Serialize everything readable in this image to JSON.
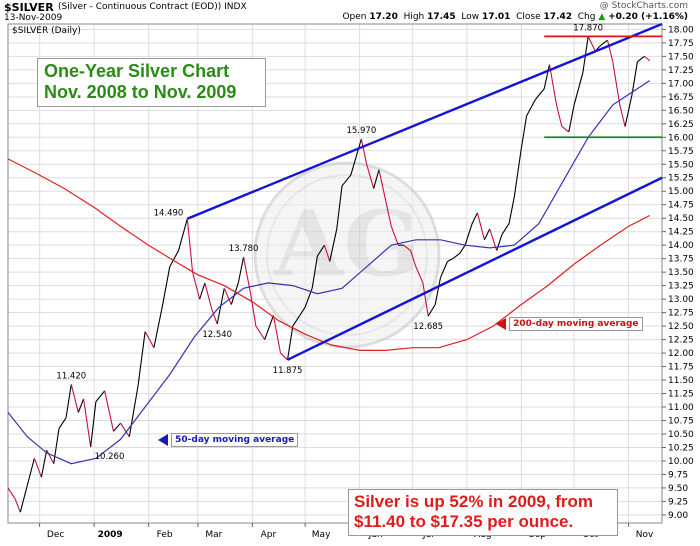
{
  "header": {
    "symbol": "$SILVER",
    "contract": "(Silver - Continuous Contract (EOD)) INDX",
    "date": "13-Nov-2009",
    "brand": "@ StockCharts.com",
    "quote": {
      "open_label": "Open",
      "open": "17.20",
      "high_label": "High",
      "high": "17.45",
      "low_label": "Low",
      "low": "17.01",
      "close_label": "Close",
      "close": "17.42",
      "chg_label": "Chg",
      "chg": "+0.20 (+1.16%)",
      "chg_arrow": "▲"
    },
    "chart_label": "$SILVER (Daily)"
  },
  "annotations": {
    "title_line1": "One-Year Silver Chart",
    "title_line2": "Nov. 2008 to Nov. 2009",
    "summary_line1": "Silver is up 52% in 2009, from",
    "summary_line2": "$11.40 to $17.35 per ounce.",
    "ma50_label": "50-day moving average",
    "ma200_label": "200-day moving average"
  },
  "colors": {
    "price_up": "#000000",
    "price_down": "#c8103c",
    "ma50": "#3434b4",
    "ma200": "#e02020",
    "channel": "#1414d8",
    "resistance": "#e81010",
    "support": "#109010",
    "title_text": "#2a8c16",
    "summary_text": "#e11b1b",
    "grid": "#dddddd"
  },
  "chart_data": {
    "type": "line",
    "ylim": [
      8.85,
      18.1
    ],
    "y_ticks": [
      "9.00",
      "9.25",
      "9.50",
      "9.75",
      "10.00",
      "10.25",
      "10.50",
      "10.75",
      "11.00",
      "11.25",
      "11.50",
      "11.75",
      "12.00",
      "12.25",
      "12.50",
      "12.75",
      "13.00",
      "13.25",
      "13.50",
      "13.75",
      "14.00",
      "14.25",
      "14.50",
      "14.75",
      "15.00",
      "15.25",
      "15.50",
      "15.75",
      "16.00",
      "16.25",
      "16.50",
      "16.75",
      "17.00",
      "17.25",
      "17.50",
      "17.75",
      "18.00"
    ],
    "x_ticks": [
      {
        "label": "Dec",
        "x": "2008-12-01"
      },
      {
        "label": "2009",
        "x": "2009-01-01",
        "bold": true
      },
      {
        "label": "Feb",
        "x": "2009-02-01"
      },
      {
        "label": "Mar",
        "x": "2009-03-01"
      },
      {
        "label": "Apr",
        "x": "2009-04-01"
      },
      {
        "label": "May",
        "x": "2009-05-01"
      },
      {
        "label": "Jun",
        "x": "2009-06-01"
      },
      {
        "label": "Jul",
        "x": "2009-07-01"
      },
      {
        "label": "Aug",
        "x": "2009-08-01"
      },
      {
        "label": "Sep",
        "x": "2009-09-01"
      },
      {
        "label": "Oct",
        "x": "2009-10-01"
      },
      {
        "label": "Nov",
        "x": "2009-11-01"
      }
    ],
    "x_range": [
      "2008-11-13",
      "2009-11-20"
    ],
    "series": [
      {
        "key": "price",
        "values": [
          [
            "2008-11-13",
            9.5
          ],
          [
            "2008-11-17",
            9.3
          ],
          [
            "2008-11-20",
            9.05
          ],
          [
            "2008-11-24",
            9.55
          ],
          [
            "2008-11-28",
            10.05
          ],
          [
            "2008-12-02",
            9.7
          ],
          [
            "2008-12-05",
            10.2
          ],
          [
            "2008-12-09",
            9.95
          ],
          [
            "2008-12-12",
            10.6
          ],
          [
            "2008-12-16",
            10.8
          ],
          [
            "2008-12-19",
            11.42
          ],
          [
            "2008-12-23",
            10.9
          ],
          [
            "2008-12-26",
            11.15
          ],
          [
            "2008-12-30",
            10.26
          ],
          [
            "2009-01-02",
            11.1
          ],
          [
            "2009-01-07",
            11.3
          ],
          [
            "2009-01-12",
            10.55
          ],
          [
            "2009-01-16",
            10.7
          ],
          [
            "2009-01-21",
            10.45
          ],
          [
            "2009-01-26",
            11.4
          ],
          [
            "2009-01-30",
            12.4
          ],
          [
            "2009-02-04",
            12.1
          ],
          [
            "2009-02-09",
            12.9
          ],
          [
            "2009-02-13",
            13.6
          ],
          [
            "2009-02-18",
            13.9
          ],
          [
            "2009-02-23",
            14.49
          ],
          [
            "2009-02-26",
            13.5
          ],
          [
            "2009-03-02",
            13.0
          ],
          [
            "2009-03-05",
            13.3
          ],
          [
            "2009-03-09",
            12.8
          ],
          [
            "2009-03-12",
            12.54
          ],
          [
            "2009-03-16",
            13.2
          ],
          [
            "2009-03-20",
            12.9
          ],
          [
            "2009-03-24",
            13.3
          ],
          [
            "2009-03-27",
            13.78
          ],
          [
            "2009-03-31",
            13.1
          ],
          [
            "2009-04-03",
            12.5
          ],
          [
            "2009-04-08",
            12.25
          ],
          [
            "2009-04-13",
            12.7
          ],
          [
            "2009-04-17",
            12.0
          ],
          [
            "2009-04-21",
            11.875
          ],
          [
            "2009-04-24",
            12.5
          ],
          [
            "2009-04-28",
            12.7
          ],
          [
            "2009-05-01",
            12.85
          ],
          [
            "2009-05-05",
            13.2
          ],
          [
            "2009-05-08",
            13.8
          ],
          [
            "2009-05-12",
            14.0
          ],
          [
            "2009-05-15",
            13.7
          ],
          [
            "2009-05-19",
            14.3
          ],
          [
            "2009-05-22",
            15.1
          ],
          [
            "2009-05-27",
            15.3
          ],
          [
            "2009-06-02",
            15.97
          ],
          [
            "2009-06-05",
            15.5
          ],
          [
            "2009-06-09",
            15.05
          ],
          [
            "2009-06-12",
            15.4
          ],
          [
            "2009-06-16",
            14.8
          ],
          [
            "2009-06-19",
            14.35
          ],
          [
            "2009-06-23",
            14.0
          ],
          [
            "2009-06-26",
            14.0
          ],
          [
            "2009-06-30",
            13.9
          ],
          [
            "2009-07-03",
            13.6
          ],
          [
            "2009-07-07",
            13.3
          ],
          [
            "2009-07-10",
            12.685
          ],
          [
            "2009-07-14",
            12.9
          ],
          [
            "2009-07-17",
            13.4
          ],
          [
            "2009-07-21",
            13.7
          ],
          [
            "2009-07-24",
            13.75
          ],
          [
            "2009-07-28",
            13.85
          ],
          [
            "2009-07-31",
            14.0
          ],
          [
            "2009-08-04",
            14.4
          ],
          [
            "2009-08-07",
            14.6
          ],
          [
            "2009-08-11",
            14.1
          ],
          [
            "2009-08-14",
            14.3
          ],
          [
            "2009-08-18",
            13.9
          ],
          [
            "2009-08-21",
            14.2
          ],
          [
            "2009-08-25",
            14.4
          ],
          [
            "2009-08-28",
            14.9
          ],
          [
            "2009-09-01",
            15.8
          ],
          [
            "2009-09-04",
            16.4
          ],
          [
            "2009-09-09",
            16.7
          ],
          [
            "2009-09-14",
            16.9
          ],
          [
            "2009-09-17",
            17.35
          ],
          [
            "2009-09-21",
            16.6
          ],
          [
            "2009-09-24",
            16.2
          ],
          [
            "2009-09-28",
            16.1
          ],
          [
            "2009-10-01",
            16.6
          ],
          [
            "2009-10-06",
            17.2
          ],
          [
            "2009-10-09",
            17.87
          ],
          [
            "2009-10-13",
            17.6
          ],
          [
            "2009-10-16",
            17.7
          ],
          [
            "2009-10-20",
            17.8
          ],
          [
            "2009-10-23",
            17.4
          ],
          [
            "2009-10-27",
            16.6
          ],
          [
            "2009-10-30",
            16.2
          ],
          [
            "2009-11-03",
            16.8
          ],
          [
            "2009-11-06",
            17.4
          ],
          [
            "2009-11-10",
            17.5
          ],
          [
            "2009-11-13",
            17.42
          ]
        ]
      },
      {
        "key": "ma50",
        "name": "50-day moving average",
        "values": [
          [
            "2008-11-13",
            10.9
          ],
          [
            "2008-11-24",
            10.45
          ],
          [
            "2008-12-05",
            10.15
          ],
          [
            "2008-12-19",
            9.95
          ],
          [
            "2009-01-02",
            10.05
          ],
          [
            "2009-01-16",
            10.4
          ],
          [
            "2009-01-30",
            11.0
          ],
          [
            "2009-02-13",
            11.6
          ],
          [
            "2009-02-27",
            12.3
          ],
          [
            "2009-03-13",
            12.85
          ],
          [
            "2009-03-27",
            13.2
          ],
          [
            "2009-04-10",
            13.3
          ],
          [
            "2009-04-24",
            13.25
          ],
          [
            "2009-05-08",
            13.1
          ],
          [
            "2009-05-22",
            13.2
          ],
          [
            "2009-06-05",
            13.6
          ],
          [
            "2009-06-19",
            14.0
          ],
          [
            "2009-07-03",
            14.1
          ],
          [
            "2009-07-17",
            14.1
          ],
          [
            "2009-07-31",
            14.0
          ],
          [
            "2009-08-14",
            13.95
          ],
          [
            "2009-08-28",
            14.0
          ],
          [
            "2009-09-11",
            14.4
          ],
          [
            "2009-09-25",
            15.2
          ],
          [
            "2009-10-09",
            16.0
          ],
          [
            "2009-10-23",
            16.6
          ],
          [
            "2009-11-06",
            16.9
          ],
          [
            "2009-11-13",
            17.05
          ]
        ]
      },
      {
        "key": "ma200",
        "name": "200-day moving average",
        "values": [
          [
            "2008-11-13",
            15.6
          ],
          [
            "2008-11-28",
            15.35
          ],
          [
            "2008-12-15",
            15.05
          ],
          [
            "2009-01-01",
            14.7
          ],
          [
            "2009-01-16",
            14.35
          ],
          [
            "2009-02-01",
            14.0
          ],
          [
            "2009-02-16",
            13.7
          ],
          [
            "2009-03-01",
            13.45
          ],
          [
            "2009-03-16",
            13.25
          ],
          [
            "2009-04-01",
            12.95
          ],
          [
            "2009-04-16",
            12.6
          ],
          [
            "2009-05-01",
            12.35
          ],
          [
            "2009-05-16",
            12.15
          ],
          [
            "2009-06-01",
            12.05
          ],
          [
            "2009-06-16",
            12.05
          ],
          [
            "2009-07-01",
            12.1
          ],
          [
            "2009-07-16",
            12.1
          ],
          [
            "2009-08-01",
            12.25
          ],
          [
            "2009-08-16",
            12.5
          ],
          [
            "2009-09-01",
            12.9
          ],
          [
            "2009-09-16",
            13.25
          ],
          [
            "2009-10-01",
            13.65
          ],
          [
            "2009-10-16",
            14.0
          ],
          [
            "2009-11-01",
            14.35
          ],
          [
            "2009-11-13",
            14.55
          ]
        ]
      }
    ],
    "trend_lines": [
      {
        "key": "upper-channel",
        "from": [
          "2009-02-23",
          14.49
        ],
        "to": [
          "2009-11-20",
          18.1
        ]
      },
      {
        "key": "lower-channel",
        "from": [
          "2009-04-21",
          11.875
        ],
        "to": [
          "2009-11-20",
          15.25
        ]
      },
      {
        "key": "resistance",
        "from": [
          "2009-09-14",
          17.87
        ],
        "to": [
          "2009-11-20",
          17.87
        ]
      },
      {
        "key": "support",
        "from": [
          "2009-09-14",
          16.0
        ],
        "to": [
          "2009-11-20",
          16.0
        ]
      }
    ],
    "point_labels": [
      {
        "text": "11.420",
        "x": "2008-12-19",
        "y": 11.42,
        "pos": "above"
      },
      {
        "text": "10.260",
        "x": "2008-12-30",
        "y": 10.26,
        "pos": "right"
      },
      {
        "text": "14.490",
        "x": "2009-02-23",
        "y": 14.49,
        "pos": "left"
      },
      {
        "text": "12.540",
        "x": "2009-03-12",
        "y": 12.54,
        "pos": "below"
      },
      {
        "text": "13.780",
        "x": "2009-03-27",
        "y": 13.78,
        "pos": "above"
      },
      {
        "text": "11.875",
        "x": "2009-04-21",
        "y": 11.875,
        "pos": "below"
      },
      {
        "text": "15.970",
        "x": "2009-06-02",
        "y": 15.97,
        "pos": "above"
      },
      {
        "text": "12.685",
        "x": "2009-07-10",
        "y": 12.685,
        "pos": "below"
      },
      {
        "text": "17.870",
        "x": "2009-10-09",
        "y": 17.87,
        "pos": "above"
      }
    ]
  }
}
